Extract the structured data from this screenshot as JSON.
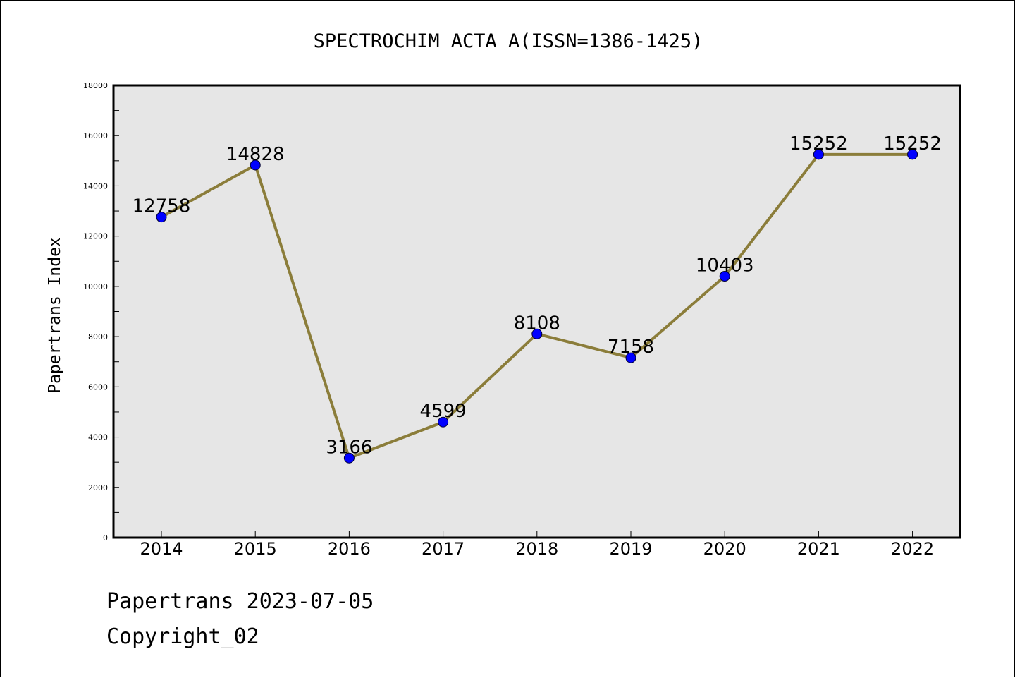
{
  "chart_data": {
    "type": "line",
    "title": "SPECTROCHIM ACTA A(ISSN=1386-1425)",
    "xlabel": "",
    "ylabel": "Papertrans Index",
    "categories": [
      "2014",
      "2015",
      "2016",
      "2017",
      "2018",
      "2019",
      "2020",
      "2021",
      "2022"
    ],
    "series": [
      {
        "values": [
          12758,
          14828,
          3166,
          4599,
          8108,
          7158,
          10403,
          15252,
          15252
        ]
      }
    ],
    "data_labels": [
      "12758",
      "14828",
      "3166",
      "4599",
      "8108",
      "7158",
      "10403",
      "15252",
      "15252"
    ],
    "ylim": [
      0,
      18000
    ],
    "yticks": [
      0,
      2000,
      4000,
      6000,
      8000,
      10000,
      12000,
      14000,
      16000,
      18000
    ],
    "grid": false,
    "legend": "none",
    "colors": {
      "line": "#8b7d3a",
      "marker": "#0000ff",
      "plot_background": "#e6e6e6",
      "axes": "#000000"
    }
  },
  "footer": {
    "date_line": "Papertrans 2023-07-05",
    "copyright": "Copyright_02"
  }
}
